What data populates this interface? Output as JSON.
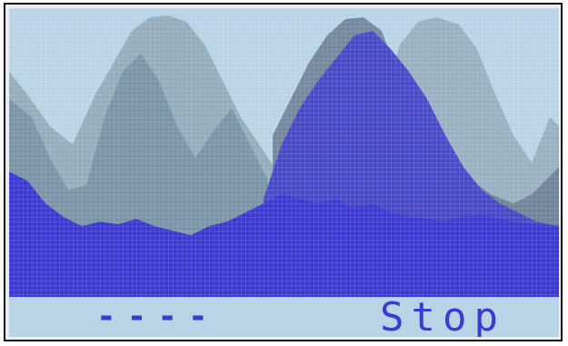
{
  "display": {
    "left_readout": "----",
    "right_status": "Stop"
  },
  "colors": {
    "screen_background": "#b8d4e6",
    "trace_primary": "#3c3ad0",
    "trace_secondary": "#6f8fa8",
    "grid": "#ffffff"
  }
}
